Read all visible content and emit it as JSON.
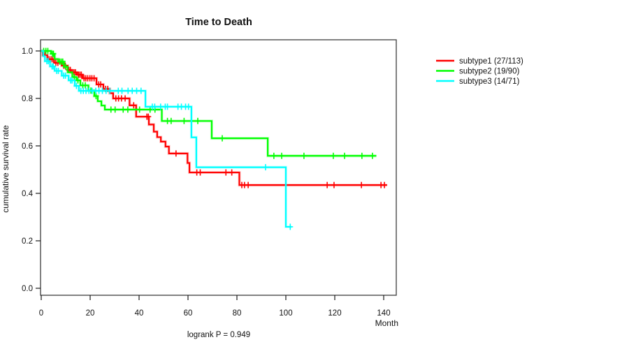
{
  "chart_data": {
    "type": "line",
    "variant": "kaplan-meier-step",
    "title": "Time to Death",
    "xlabel": "Month",
    "ylabel": "cumulative survival rate",
    "footnote": "logrank P = 0.949",
    "xlim": [
      0,
      145
    ],
    "ylim": [
      0,
      1.04
    ],
    "xticks": [
      0,
      20,
      40,
      60,
      80,
      100,
      120,
      140
    ],
    "yticks": [
      0,
      0.2,
      0.4,
      0.6,
      0.8,
      1.0
    ],
    "grid": false,
    "legend_position": "right-outside",
    "series": [
      {
        "name": "subtype1 (27/113)",
        "id": "subtype1",
        "color": "#ff0000",
        "points": [
          [
            0,
            1.0
          ],
          [
            0.6,
            0.982
          ],
          [
            2.5,
            0.965
          ],
          [
            5.3,
            0.95
          ],
          [
            8.4,
            0.938
          ],
          [
            10.8,
            0.92
          ],
          [
            12.2,
            0.91
          ],
          [
            14.6,
            0.9
          ],
          [
            16.9,
            0.885
          ],
          [
            22.6,
            0.859
          ],
          [
            25.4,
            0.84
          ],
          [
            28.0,
            0.822
          ],
          [
            29.4,
            0.8
          ],
          [
            36.1,
            0.771
          ],
          [
            38.8,
            0.723
          ],
          [
            44.0,
            0.69
          ],
          [
            46.0,
            0.66
          ],
          [
            47.4,
            0.637
          ],
          [
            48.9,
            0.618
          ],
          [
            50.8,
            0.597
          ],
          [
            52.2,
            0.568
          ],
          [
            59.8,
            0.528
          ],
          [
            60.6,
            0.488
          ],
          [
            81.0,
            0.435
          ]
        ],
        "end_x": 141.3,
        "censors": [
          [
            1.5,
            0.982
          ],
          [
            3.2,
            0.965
          ],
          [
            4.0,
            0.965
          ],
          [
            4.7,
            0.965
          ],
          [
            6.0,
            0.95
          ],
          [
            6.8,
            0.95
          ],
          [
            9.2,
            0.938
          ],
          [
            9.8,
            0.938
          ],
          [
            11.3,
            0.92
          ],
          [
            11.9,
            0.92
          ],
          [
            12.8,
            0.91
          ],
          [
            13.4,
            0.91
          ],
          [
            14.0,
            0.91
          ],
          [
            15.2,
            0.9
          ],
          [
            15.8,
            0.9
          ],
          [
            16.4,
            0.9
          ],
          [
            17.5,
            0.885
          ],
          [
            18.2,
            0.885
          ],
          [
            19.0,
            0.885
          ],
          [
            19.9,
            0.885
          ],
          [
            20.7,
            0.885
          ],
          [
            21.6,
            0.885
          ],
          [
            23.5,
            0.859
          ],
          [
            24.3,
            0.859
          ],
          [
            26.3,
            0.84
          ],
          [
            27.2,
            0.84
          ],
          [
            30.5,
            0.8
          ],
          [
            31.6,
            0.8
          ],
          [
            32.8,
            0.8
          ],
          [
            34.3,
            0.8
          ],
          [
            37.8,
            0.771
          ],
          [
            43.2,
            0.723
          ],
          [
            43.8,
            0.723
          ],
          [
            55.1,
            0.568
          ],
          [
            63.6,
            0.488
          ],
          [
            65.0,
            0.488
          ],
          [
            75.5,
            0.488
          ],
          [
            77.9,
            0.488
          ],
          [
            82.0,
            0.435
          ],
          [
            83.1,
            0.435
          ],
          [
            84.6,
            0.435
          ],
          [
            116.9,
            0.435
          ],
          [
            119.7,
            0.435
          ],
          [
            130.9,
            0.435
          ],
          [
            138.9,
            0.435
          ],
          [
            140.3,
            0.435
          ]
        ]
      },
      {
        "name": "subtype2 (19/90)",
        "id": "subtype2",
        "color": "#00ff00",
        "points": [
          [
            0,
            1.0
          ],
          [
            4.0,
            0.988
          ],
          [
            5.5,
            0.966
          ],
          [
            7.0,
            0.955
          ],
          [
            9.3,
            0.933
          ],
          [
            10.8,
            0.91
          ],
          [
            12.7,
            0.89
          ],
          [
            14.4,
            0.876
          ],
          [
            16.0,
            0.855
          ],
          [
            19.3,
            0.833
          ],
          [
            21.7,
            0.81
          ],
          [
            23.1,
            0.788
          ],
          [
            24.6,
            0.77
          ],
          [
            26.0,
            0.753
          ],
          [
            49.3,
            0.705
          ],
          [
            69.7,
            0.632
          ],
          [
            92.6,
            0.558
          ]
        ],
        "end_x": 137.0,
        "censors": [
          [
            1.0,
            1.0
          ],
          [
            1.9,
            1.0
          ],
          [
            2.7,
            1.0
          ],
          [
            4.6,
            0.988
          ],
          [
            5.0,
            0.988
          ],
          [
            7.6,
            0.955
          ],
          [
            8.2,
            0.955
          ],
          [
            8.8,
            0.955
          ],
          [
            10.0,
            0.933
          ],
          [
            13.5,
            0.89
          ],
          [
            15.0,
            0.876
          ],
          [
            17.0,
            0.855
          ],
          [
            18.0,
            0.855
          ],
          [
            20.3,
            0.833
          ],
          [
            22.4,
            0.81
          ],
          [
            28.5,
            0.753
          ],
          [
            30.2,
            0.753
          ],
          [
            33.5,
            0.753
          ],
          [
            35.4,
            0.753
          ],
          [
            40.2,
            0.753
          ],
          [
            44.5,
            0.753
          ],
          [
            46.5,
            0.753
          ],
          [
            51.6,
            0.705
          ],
          [
            53.1,
            0.705
          ],
          [
            58.4,
            0.705
          ],
          [
            64.0,
            0.705
          ],
          [
            74.0,
            0.632
          ],
          [
            95.1,
            0.558
          ],
          [
            98.3,
            0.558
          ],
          [
            107.4,
            0.558
          ],
          [
            119.4,
            0.558
          ],
          [
            124.0,
            0.558
          ],
          [
            131.1,
            0.558
          ],
          [
            135.4,
            0.558
          ]
        ]
      },
      {
        "name": "subtype3 (14/71)",
        "id": "subtype3",
        "color": "#00ffff",
        "points": [
          [
            0,
            1.0
          ],
          [
            0.8,
            0.978
          ],
          [
            1.5,
            0.957
          ],
          [
            3.6,
            0.935
          ],
          [
            5.5,
            0.916
          ],
          [
            8.4,
            0.896
          ],
          [
            11.2,
            0.876
          ],
          [
            13.7,
            0.853
          ],
          [
            15.4,
            0.832
          ],
          [
            42.6,
            0.765
          ],
          [
            61.4,
            0.636
          ],
          [
            63.4,
            0.51
          ],
          [
            100.0,
            0.259
          ]
        ],
        "end_x": 102.3,
        "censors": [
          [
            2.3,
            0.957
          ],
          [
            2.9,
            0.957
          ],
          [
            4.4,
            0.935
          ],
          [
            4.9,
            0.935
          ],
          [
            6.3,
            0.916
          ],
          [
            7.0,
            0.916
          ],
          [
            9.2,
            0.896
          ],
          [
            9.9,
            0.896
          ],
          [
            12.0,
            0.876
          ],
          [
            12.6,
            0.876
          ],
          [
            14.4,
            0.853
          ],
          [
            16.2,
            0.832
          ],
          [
            17.2,
            0.832
          ],
          [
            18.3,
            0.832
          ],
          [
            19.5,
            0.832
          ],
          [
            20.8,
            0.832
          ],
          [
            22.3,
            0.832
          ],
          [
            23.6,
            0.832
          ],
          [
            25.0,
            0.832
          ],
          [
            26.5,
            0.832
          ],
          [
            28.0,
            0.832
          ],
          [
            31.5,
            0.832
          ],
          [
            33.0,
            0.832
          ],
          [
            35.5,
            0.832
          ],
          [
            37.2,
            0.832
          ],
          [
            39.0,
            0.832
          ],
          [
            40.8,
            0.832
          ],
          [
            45.4,
            0.765
          ],
          [
            46.4,
            0.765
          ],
          [
            48.8,
            0.765
          ],
          [
            50.7,
            0.765
          ],
          [
            51.6,
            0.765
          ],
          [
            55.9,
            0.765
          ],
          [
            57.3,
            0.765
          ],
          [
            59.0,
            0.765
          ],
          [
            60.2,
            0.765
          ],
          [
            91.7,
            0.51
          ],
          [
            101.8,
            0.259
          ]
        ]
      }
    ]
  }
}
